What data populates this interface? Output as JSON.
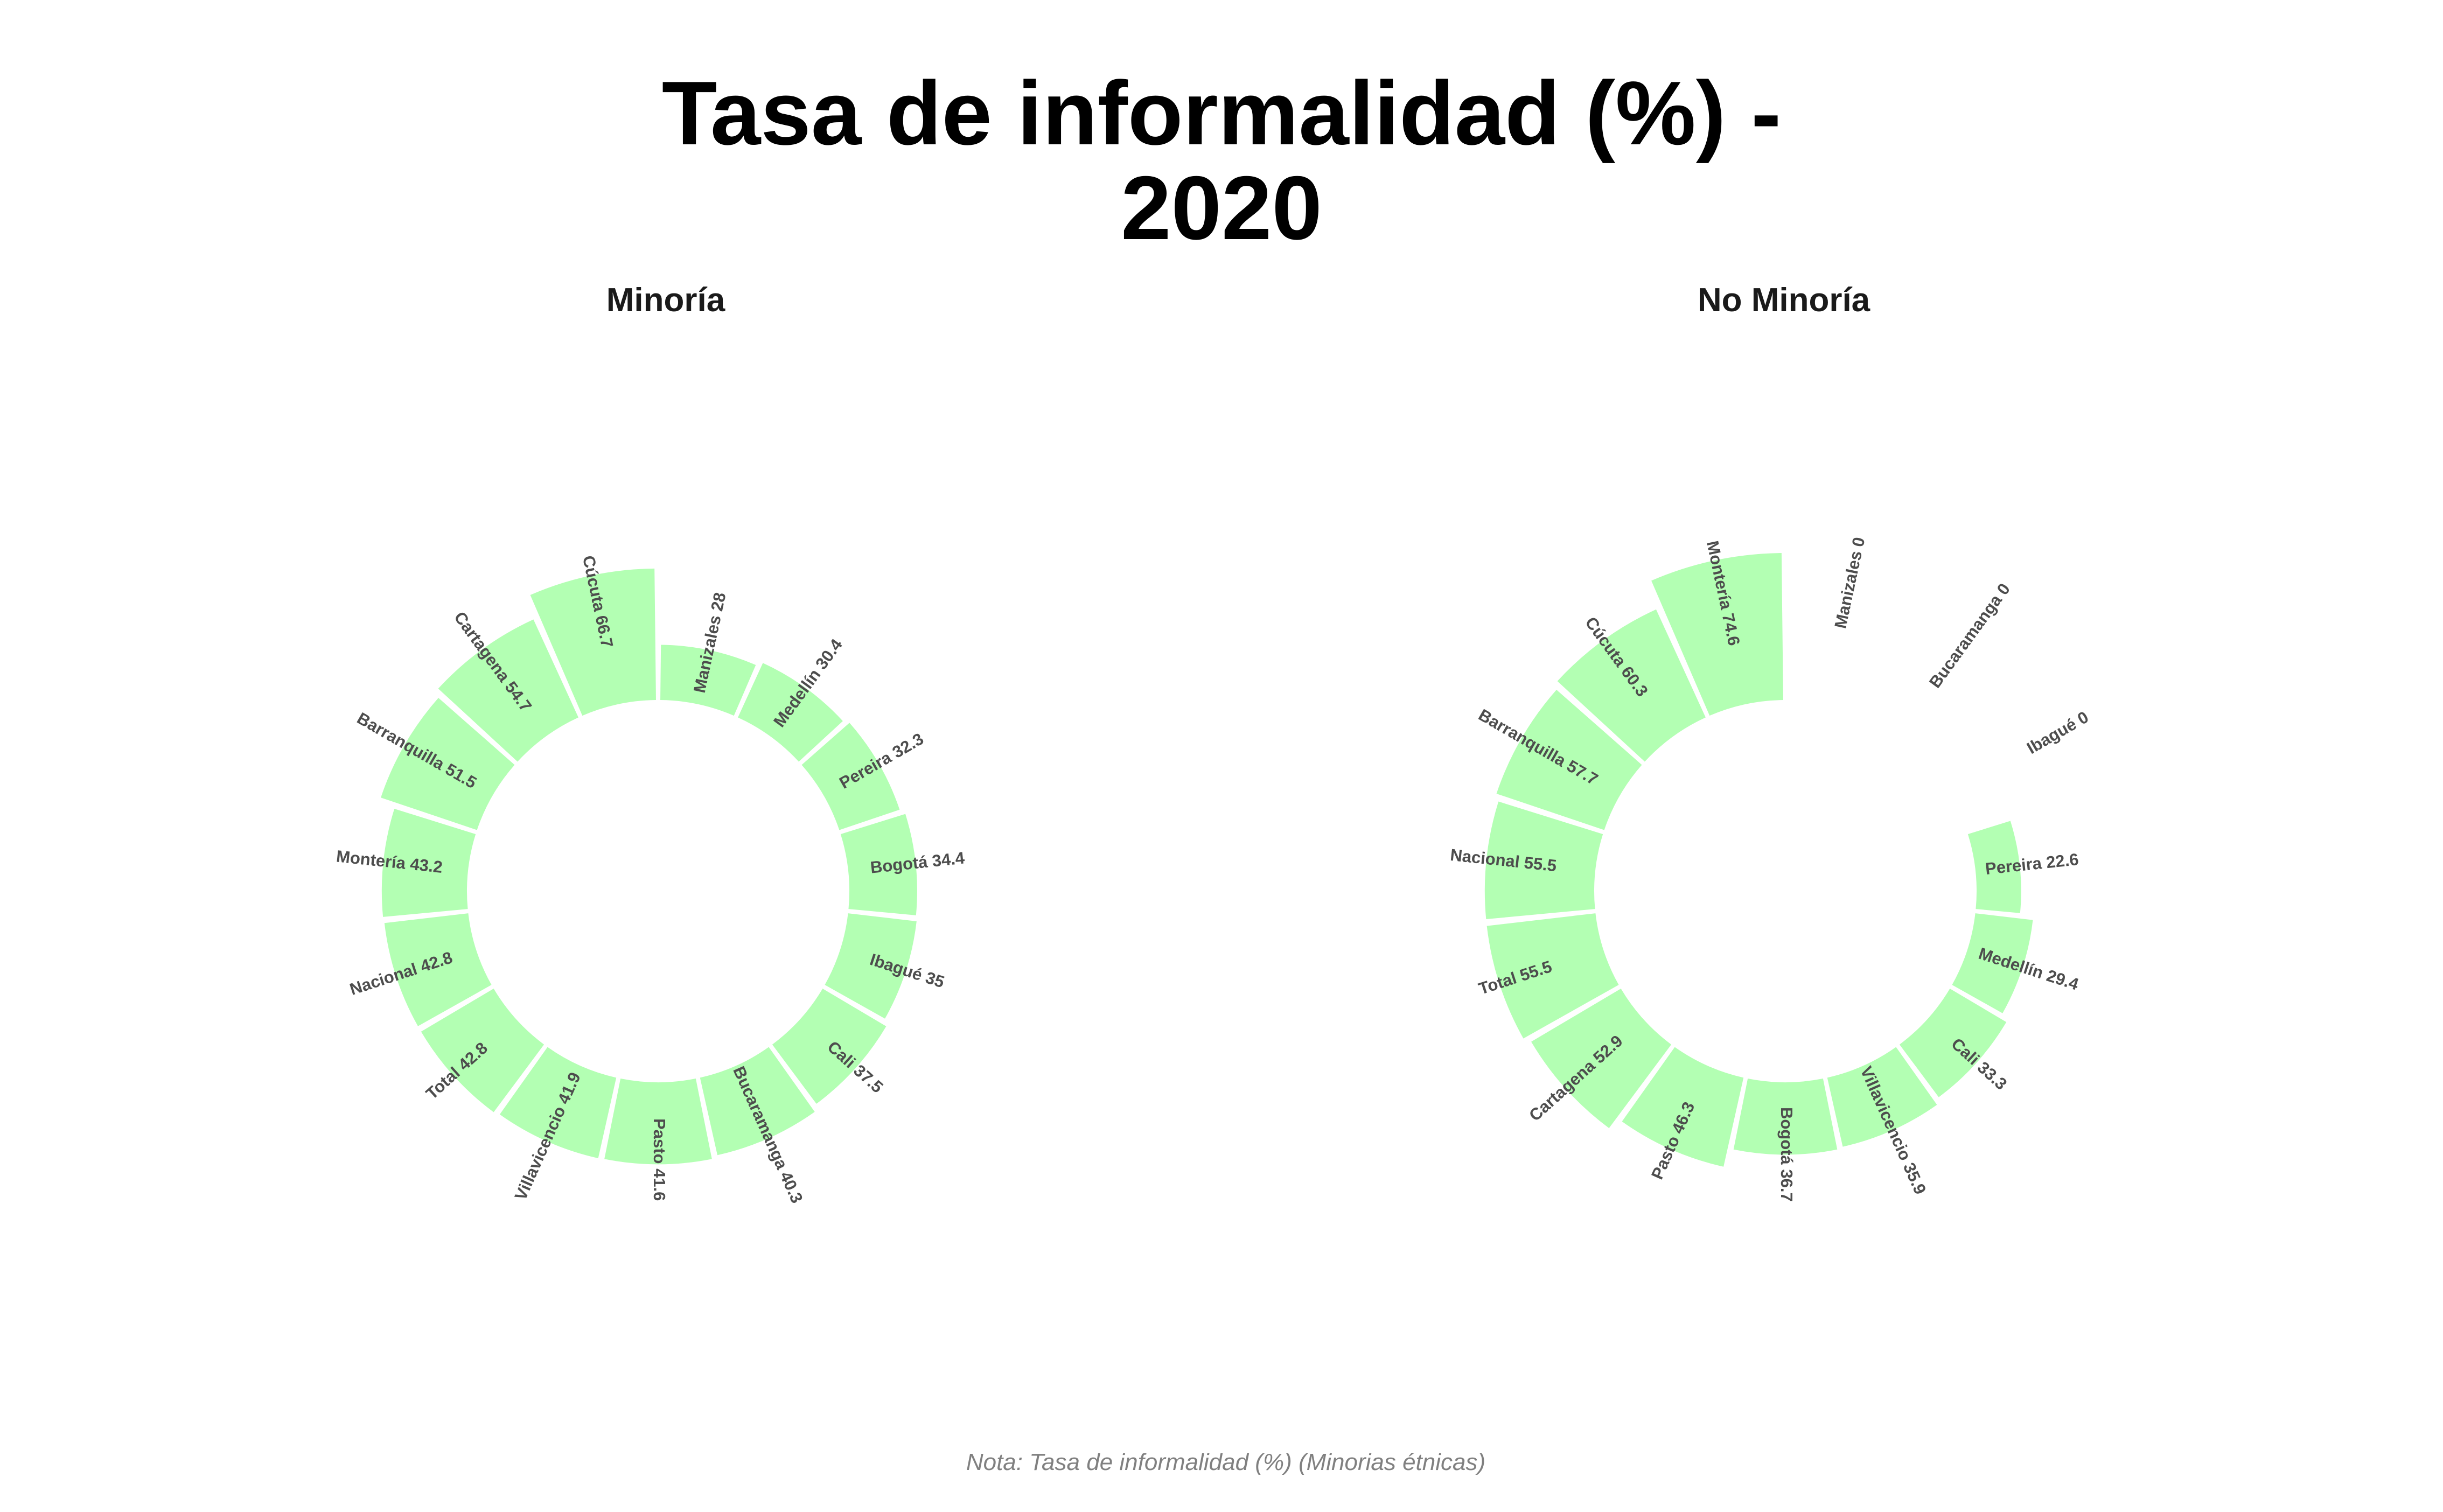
{
  "chart_data": {
    "type": "bar",
    "coordinate": "polar",
    "title": [
      "Tasa de informalidad (%) -",
      "2020"
    ],
    "caption": "Nota: Tasa de informalidad (%) (Minorias étnicas)",
    "bar_color": "#b3ffb3",
    "label_color": "#4d4d4d",
    "max_value": 80,
    "panels": [
      {
        "title": "Minoría",
        "categories": [
          "Manizales",
          "Medellín",
          "Pereira",
          "Bogotá",
          "Ibagué",
          "Cali",
          "Bucaramanga",
          "Pasto",
          "Villavicencio",
          "Total",
          "Nacional",
          "Montería",
          "Barranquilla",
          "Cartagena",
          "Cúcuta"
        ],
        "values": [
          28,
          30.4,
          32.3,
          34.4,
          35,
          37.5,
          40.3,
          41.6,
          41.9,
          42.8,
          42.8,
          43.2,
          51.5,
          54.7,
          66.7
        ],
        "labels": [
          "Manizales 28",
          "Medellín 30.4",
          "Pereira 32.3",
          "Bogotá 34.4",
          "Ibagué 35",
          "Cali 37.5",
          "Bucaramanga 40.3",
          "Pasto 41.6",
          "Villavicencio 41.9",
          "Total 42.8",
          "Nacional 42.8",
          "Montería 43.2",
          "Barranquilla 51.5",
          "Cartagena 54.7",
          "Cúcuta 66.7"
        ]
      },
      {
        "title": "No Minoría",
        "categories": [
          "Manizales",
          "Bucaramanga",
          "Ibagué",
          "Pereira",
          "Medellín",
          "Cali",
          "Villavicencio",
          "Bogotá",
          "Pasto",
          "Cartagena",
          "Total",
          "Nacional",
          "Barranquilla",
          "Cúcuta",
          "Montería"
        ],
        "values": [
          0,
          0,
          0,
          22.6,
          29.4,
          33.3,
          35.9,
          36.7,
          46.3,
          52.9,
          55.5,
          55.5,
          57.7,
          60.3,
          74.6
        ],
        "labels": [
          "Manizales 0",
          "Bucaramanga 0",
          "Ibagué 0",
          "Pereira 22.6",
          "Medellín 29.4",
          "Cali 33.3",
          "Villavicencio 35.9",
          "Bogotá 36.7",
          "Pasto 46.3",
          "Cartagena 52.9",
          "Total 55.5",
          "Nacional 55.5",
          "Barranquilla 57.7",
          "Cúcuta 60.3",
          "Montería 74.6"
        ]
      }
    ]
  }
}
